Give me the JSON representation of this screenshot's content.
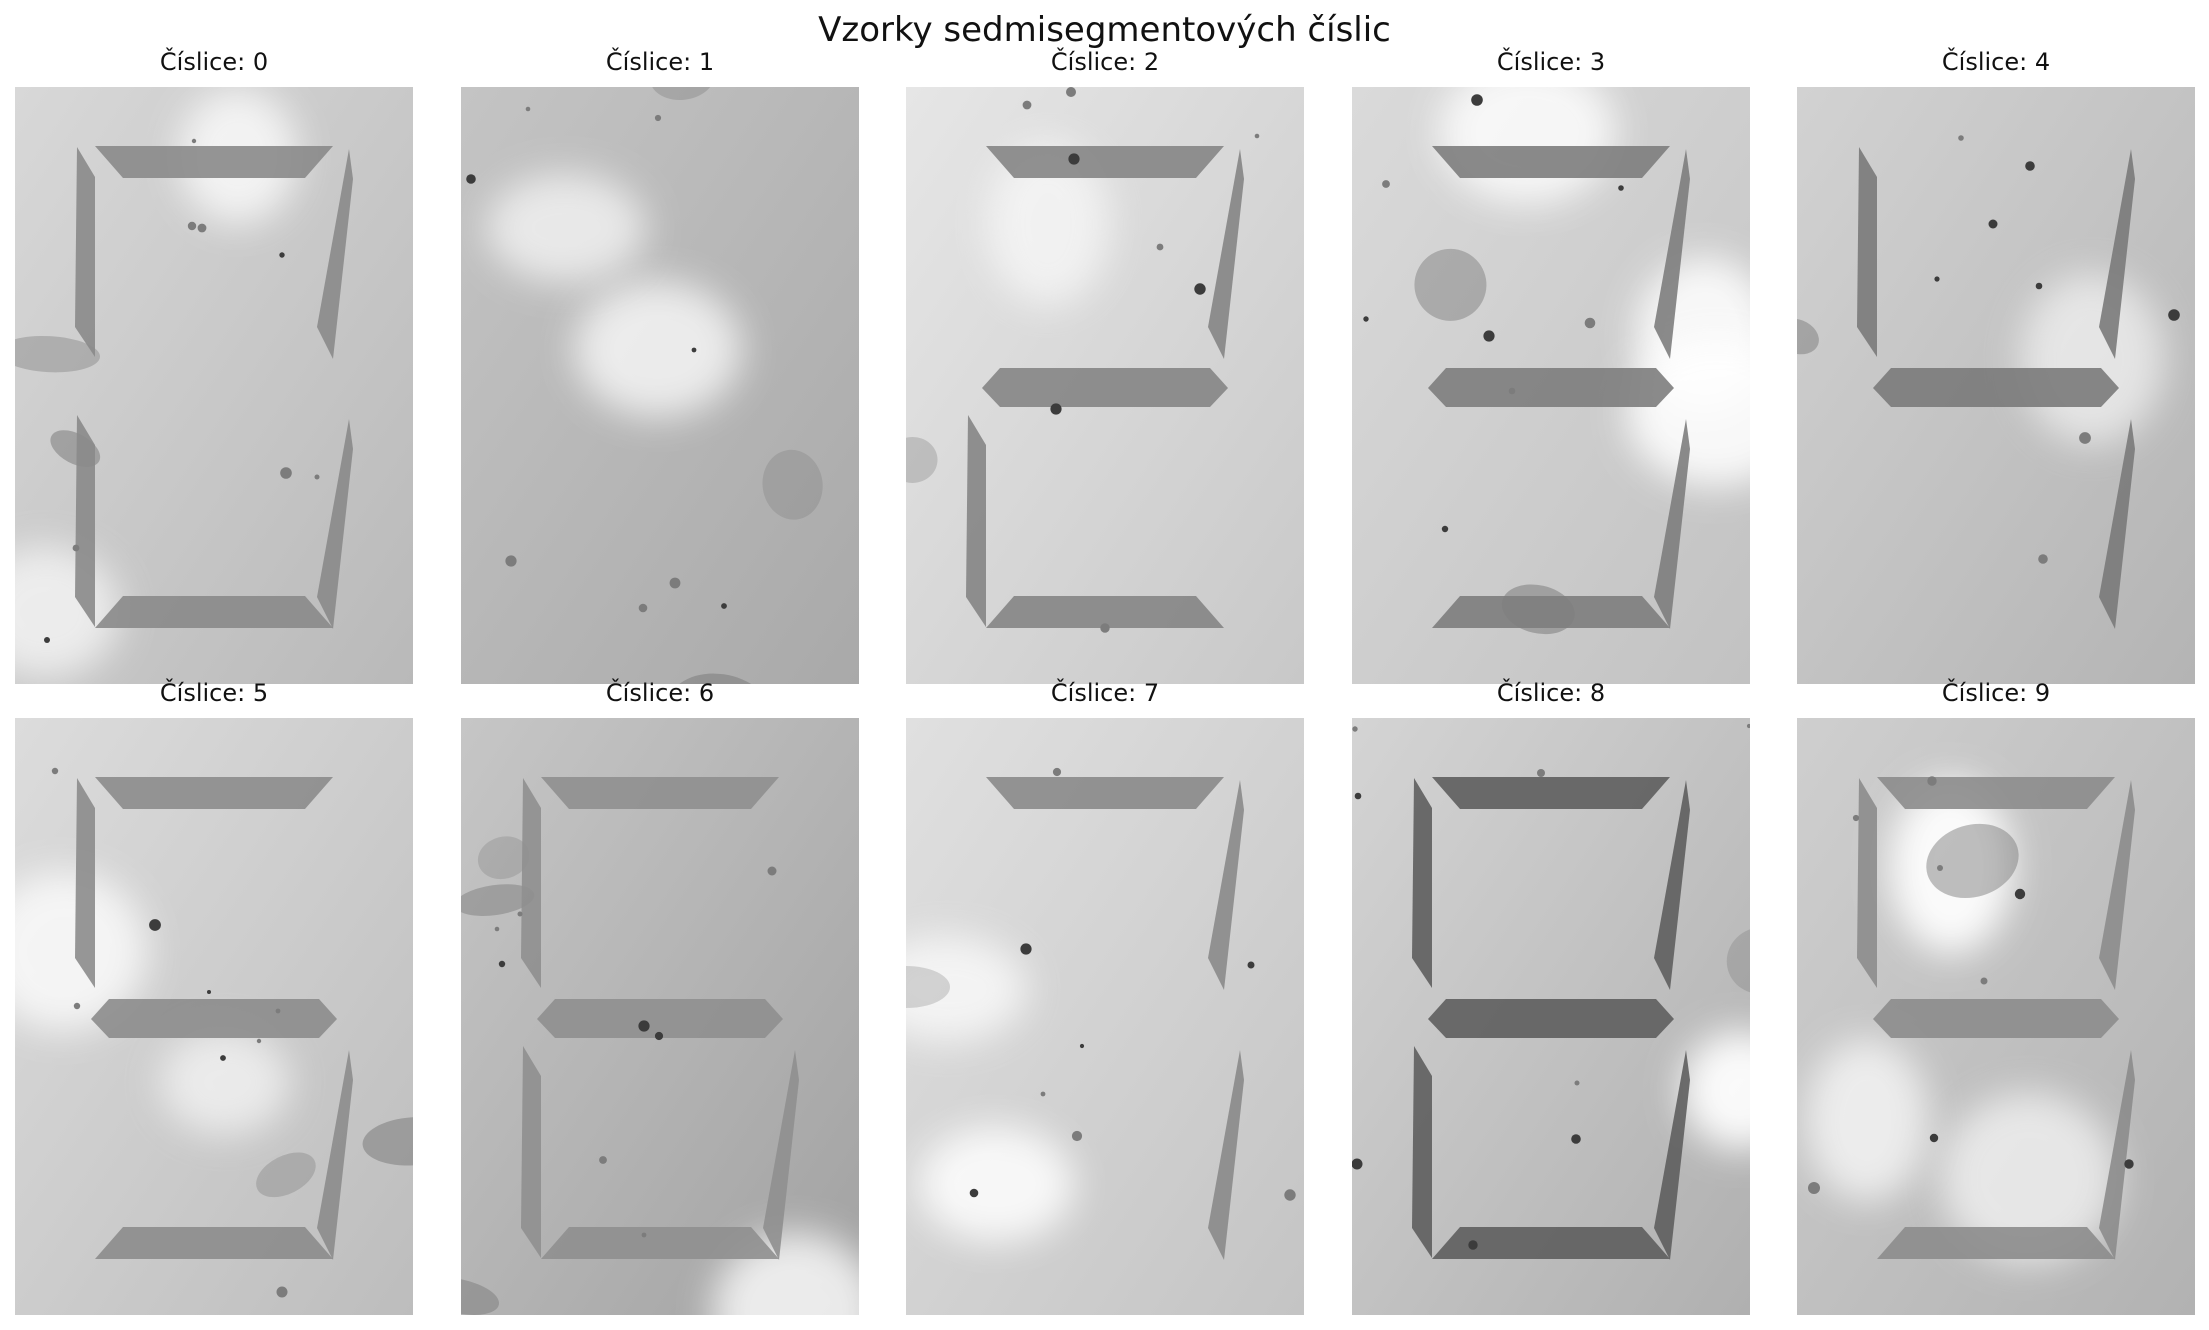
{
  "figure": {
    "suptitle": "Vzorky sedmisegmentových číslic",
    "label_prefix": "Číslice: ",
    "samples": [
      {
        "digit": "0",
        "segments": [
          "a",
          "b",
          "c",
          "d",
          "e",
          "f"
        ],
        "bg_base": "#b9b9b9",
        "bg_light": "#d8d8d8",
        "segment_color": "#8a8a8a"
      },
      {
        "digit": "1",
        "segments": [],
        "bg_base": "#a9a9a9",
        "bg_light": "#c4c4c4",
        "segment_color": "#8a8a8a"
      },
      {
        "digit": "2",
        "segments": [
          "a",
          "b",
          "g",
          "e",
          "d"
        ],
        "bg_base": "#c8c8c8",
        "bg_light": "#e6e6e6",
        "segment_color": "#858585"
      },
      {
        "digit": "3",
        "segments": [
          "a",
          "b",
          "g",
          "c",
          "d"
        ],
        "bg_base": "#c2c2c2",
        "bg_light": "#dadada",
        "segment_color": "#7d7d7d"
      },
      {
        "digit": "4",
        "segments": [
          "f",
          "g",
          "b",
          "c"
        ],
        "bg_base": "#b4b4b4",
        "bg_light": "#d2d2d2",
        "segment_color": "#7a7a7a"
      },
      {
        "digit": "5",
        "segments": [
          "a",
          "f",
          "g",
          "c",
          "d"
        ],
        "bg_base": "#bdbdbd",
        "bg_light": "#dcdcdc",
        "segment_color": "#8c8c8c"
      },
      {
        "digit": "6",
        "segments": [
          "a",
          "f",
          "g",
          "e",
          "d",
          "c"
        ],
        "bg_base": "#a2a2a2",
        "bg_light": "#c6c6c6",
        "segment_color": "#8f8f8f"
      },
      {
        "digit": "7",
        "segments": [
          "a",
          "b",
          "c"
        ],
        "bg_base": "#c4c4c4",
        "bg_light": "#e0e0e0",
        "segment_color": "#8a8a8a"
      },
      {
        "digit": "8",
        "segments": [
          "a",
          "b",
          "c",
          "d",
          "e",
          "f",
          "g"
        ],
        "bg_base": "#b0b0b0",
        "bg_light": "#d4d4d4",
        "segment_color": "#5e5e5e"
      },
      {
        "digit": "9",
        "segments": [
          "a",
          "b",
          "c",
          "d",
          "f",
          "g"
        ],
        "bg_base": "#b2b2b2",
        "bg_light": "#cfcfcf",
        "segment_color": "#8c8c8c"
      }
    ]
  }
}
